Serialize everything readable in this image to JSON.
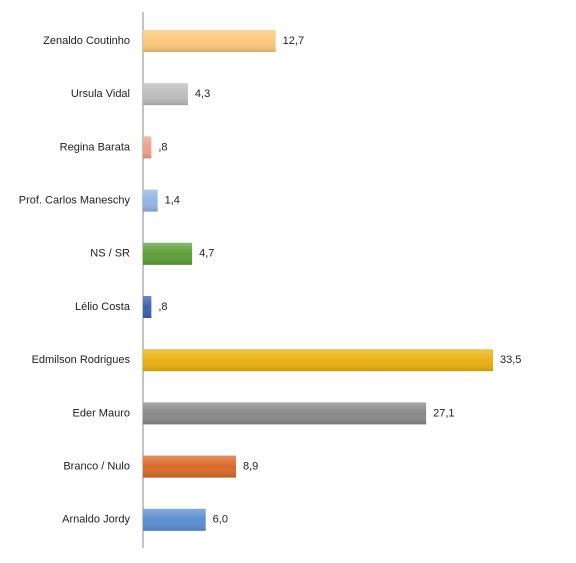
{
  "chart_data": {
    "type": "bar",
    "orientation": "horizontal",
    "categories": [
      "Zenaldo Coutinho",
      "Ursula Vidal",
      "Regina Barata",
      "Prof. Carlos Maneschy",
      "NS / SR",
      "Lélio Costa",
      "Edmilson Rodrigues",
      "Eder Mauro",
      "Branco / Nulo",
      "Arnaldo Jordy"
    ],
    "values": [
      12.7,
      4.3,
      0.8,
      1.4,
      4.7,
      0.8,
      33.5,
      27.1,
      8.9,
      6.0
    ],
    "value_labels": [
      "12,7",
      "4,3",
      ",8",
      "1,4",
      "4,7",
      ",8",
      "33,5",
      "27,1",
      "8,9",
      "6,0"
    ],
    "colors": [
      "#fbc97c",
      "#bdbdbd",
      "#f0a18b",
      "#92b6e4",
      "#5e9f3a",
      "#3b63ae",
      "#e9b214",
      "#8a8a8a",
      "#d96a2b",
      "#5b8fd0"
    ]
  }
}
